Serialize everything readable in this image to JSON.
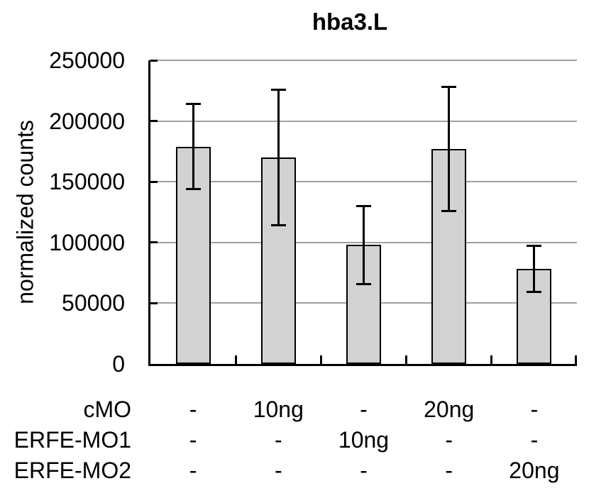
{
  "title": "hba3.L",
  "chart_data": {
    "type": "bar",
    "title": "hba3.L",
    "ylabel": "normalized counts",
    "ylim": [
      0,
      250000
    ],
    "yticks": [
      0,
      50000,
      100000,
      150000,
      200000,
      250000
    ],
    "grid": true,
    "legend": false,
    "bar_color": "#d2d2d2",
    "bar_border_color": "#000000",
    "gridline_color": "#a0a0a0",
    "series": [
      {
        "name": "normalized counts",
        "values": [
          179000,
          170000,
          98000,
          177000,
          78000
        ],
        "errors": [
          35000,
          56000,
          32000,
          51000,
          19000
        ]
      }
    ],
    "dose_table": {
      "rows": [
        {
          "label": "cMO",
          "values": [
            "-",
            "10ng",
            "-",
            "20ng",
            "-"
          ]
        },
        {
          "label": "ERFE-MO1",
          "values": [
            "-",
            "-",
            "10ng",
            "-",
            "-"
          ]
        },
        {
          "label": "ERFE-MO2",
          "values": [
            "-",
            "-",
            "-",
            "-",
            "20ng"
          ]
        }
      ]
    }
  }
}
